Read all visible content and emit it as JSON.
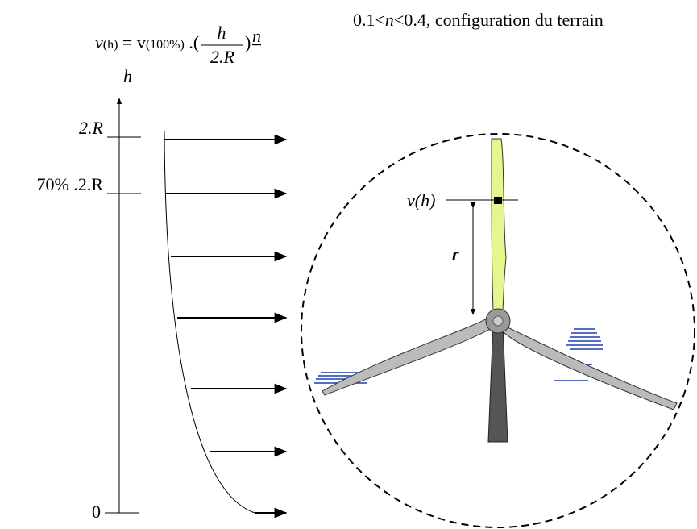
{
  "formula": {
    "lhs": "v",
    "lhs_arg": "(h)",
    "eq": " = v",
    "ref": "(100%)",
    "dot": " .(",
    "num": "h",
    "den": "2.R",
    "close": ")",
    "exp": "n"
  },
  "note": {
    "pre": "0.1<",
    "var": "n",
    "post": "<0.4, configuration du terrain"
  },
  "axis": {
    "label": "h",
    "tick_top": "2.R",
    "tick_70": "70% .2.R",
    "tick_zero": "0"
  },
  "turbine": {
    "speed_label": "v(h)",
    "radius_label": "r"
  }
}
